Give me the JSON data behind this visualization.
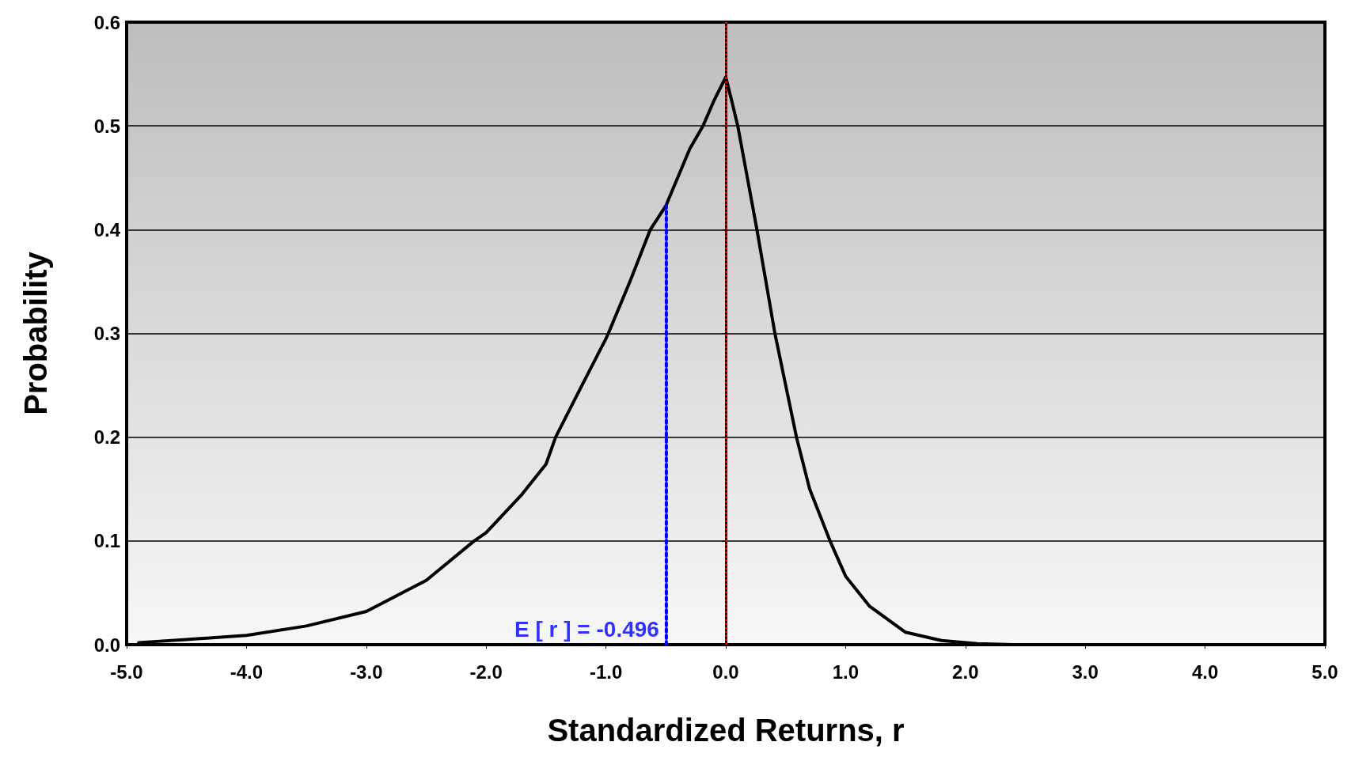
{
  "chart_data": {
    "type": "line",
    "xlabel": "Standardized Returns, r",
    "ylabel": "Probability",
    "series": [
      {
        "color": "#000000",
        "line_style": "solid",
        "x": [
          -4.9,
          -4.5,
          -4.0,
          -3.5,
          -3.0,
          -2.5,
          -2.1,
          -2.0,
          -1.7,
          -1.5,
          -1.42,
          -1.2,
          -1.0,
          -0.98,
          -0.8,
          -0.63,
          -0.5,
          -0.3,
          -0.19,
          -0.1,
          0.0,
          0.05,
          0.1,
          0.18,
          0.26,
          0.41,
          0.5,
          0.59,
          0.7,
          0.87,
          1.0,
          1.2,
          1.5,
          1.8,
          2.1,
          2.4,
          5.0
        ],
        "values": [
          0.002,
          0.005,
          0.009,
          0.018,
          0.032,
          0.062,
          0.1,
          0.108,
          0.145,
          0.174,
          0.2,
          0.25,
          0.295,
          0.3,
          0.35,
          0.4,
          0.423,
          0.478,
          0.5,
          0.524,
          0.547,
          0.524,
          0.5,
          0.45,
          0.4,
          0.3,
          0.25,
          0.2,
          0.15,
          0.1,
          0.066,
          0.037,
          0.012,
          0.004,
          0.001,
          0.0,
          0.0
        ]
      },
      {
        "color": "#0000ff",
        "line_style": "dotted",
        "x": [
          -0.496,
          -0.496
        ],
        "values": [
          0.0,
          0.423
        ]
      }
    ],
    "ref_lines": [
      {
        "axis": "x",
        "value": 0.0,
        "color": "#ff0000",
        "line_style": "dotted"
      }
    ],
    "annotations": [
      {
        "text": "E [ r ] = -0.496",
        "x": -0.496,
        "y": 0.0
      }
    ],
    "xlim": [
      -5,
      5
    ],
    "xticks": [
      {
        "value": -5,
        "label": "-5.0"
      },
      {
        "value": -4,
        "label": "-4.0"
      },
      {
        "value": -3,
        "label": "-3.0"
      },
      {
        "value": -2,
        "label": "-2.0"
      },
      {
        "value": -1,
        "label": "-1.0"
      },
      {
        "value": 0,
        "label": "0.0"
      },
      {
        "value": 1,
        "label": "1.0"
      },
      {
        "value": 2,
        "label": "2.0"
      },
      {
        "value": 3,
        "label": "3.0"
      },
      {
        "value": 4,
        "label": "4.0"
      },
      {
        "value": 5,
        "label": "5.0"
      }
    ],
    "ylim": [
      0,
      0.6
    ],
    "yticks": [
      {
        "value": 0,
        "label": "0.0"
      },
      0.1,
      0.2,
      0.3,
      0.4,
      0.5,
      0.6
    ],
    "grid": "y",
    "marker": "none"
  }
}
